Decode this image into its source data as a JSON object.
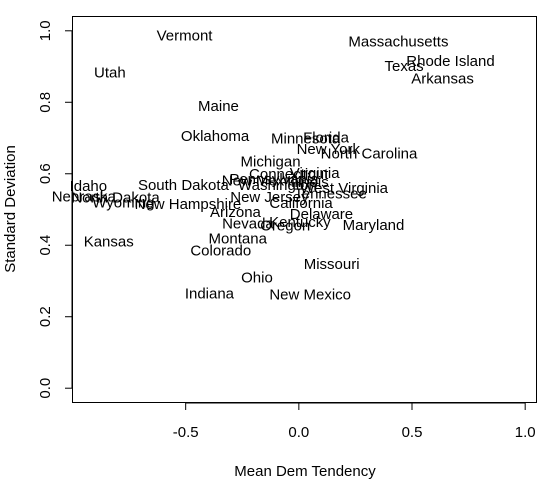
{
  "chart_data": {
    "type": "scatter",
    "title": "",
    "xlabel": "Mean Dem Tendency",
    "ylabel": "Standard Deviation",
    "xlim": [
      -1.0,
      1.05
    ],
    "ylim": [
      -0.04,
      1.04
    ],
    "xticks": [
      -0.5,
      0.0,
      0.5,
      1.0
    ],
    "xtick_labels": [
      "-0.5",
      "0.0",
      "0.5",
      "1.0"
    ],
    "yticks": [
      0.0,
      0.2,
      0.4,
      0.6,
      0.8,
      1.0
    ],
    "ytick_labels": [
      "0.0",
      "0.2",
      "0.4",
      "0.6",
      "0.8",
      "1.0"
    ],
    "grid": false,
    "points": [
      {
        "label": "Vermont",
        "x": -0.505,
        "y": 0.987
      },
      {
        "label": "Massachusetts",
        "x": 0.44,
        "y": 0.97
      },
      {
        "label": "Rhode Island",
        "x": 0.67,
        "y": 0.915
      },
      {
        "label": "Texas",
        "x": 0.465,
        "y": 0.902
      },
      {
        "label": "Utah",
        "x": -0.835,
        "y": 0.883
      },
      {
        "label": "Arkansas",
        "x": 0.635,
        "y": 0.867
      },
      {
        "label": "Maine",
        "x": -0.355,
        "y": 0.79
      },
      {
        "label": "Oklahoma",
        "x": -0.37,
        "y": 0.705
      },
      {
        "label": "Minnesota",
        "x": 0.03,
        "y": 0.699
      },
      {
        "label": "Florida",
        "x": 0.12,
        "y": 0.702
      },
      {
        "label": "New York",
        "x": 0.13,
        "y": 0.669
      },
      {
        "label": "North Carolina",
        "x": 0.31,
        "y": 0.656
      },
      {
        "label": "Michigan",
        "x": -0.125,
        "y": 0.634
      },
      {
        "label": "Connecticut",
        "x": -0.045,
        "y": 0.6
      },
      {
        "label": "Virginia",
        "x": 0.07,
        "y": 0.602
      },
      {
        "label": "Pennsylvania",
        "x": -0.11,
        "y": 0.585
      },
      {
        "label": "New Mexico",
        "x": -0.16,
        "y": 0.581
      },
      {
        "label": "Washington",
        "x": -0.095,
        "y": 0.568
      },
      {
        "label": "Illinois",
        "x": 0.04,
        "y": 0.577
      },
      {
        "label": "West Virginia",
        "x": 0.2,
        "y": 0.56
      },
      {
        "label": "Idaho",
        "x": -0.93,
        "y": 0.566
      },
      {
        "label": "South Dakota",
        "x": -0.51,
        "y": 0.569
      },
      {
        "label": "Tennessee",
        "x": 0.14,
        "y": 0.545
      },
      {
        "label": "North Dakota",
        "x": -0.81,
        "y": 0.533
      },
      {
        "label": "Nebraska",
        "x": -0.95,
        "y": 0.537
      },
      {
        "label": "New Jersey",
        "x": -0.13,
        "y": 0.535
      },
      {
        "label": "California",
        "x": 0.01,
        "y": 0.518
      },
      {
        "label": "Wyoming",
        "x": -0.775,
        "y": 0.52
      },
      {
        "label": "New Hampshire",
        "x": -0.49,
        "y": 0.516
      },
      {
        "label": "Arizona",
        "x": -0.28,
        "y": 0.493
      },
      {
        "label": "Delaware",
        "x": 0.1,
        "y": 0.488
      },
      {
        "label": "Nevada",
        "x": -0.225,
        "y": 0.461
      },
      {
        "label": "Kentucky",
        "x": 0.005,
        "y": 0.465
      },
      {
        "label": "Oregon",
        "x": -0.06,
        "y": 0.455
      },
      {
        "label": "Maryland",
        "x": 0.33,
        "y": 0.457
      },
      {
        "label": "Montana",
        "x": -0.27,
        "y": 0.419
      },
      {
        "label": "Kansas",
        "x": -0.84,
        "y": 0.41
      },
      {
        "label": "Colorado",
        "x": -0.345,
        "y": 0.385
      },
      {
        "label": "Missouri",
        "x": 0.145,
        "y": 0.348
      },
      {
        "label": "Ohio",
        "x": -0.185,
        "y": 0.31
      },
      {
        "label": "Indiana",
        "x": -0.395,
        "y": 0.265
      },
      {
        "label": "New Mexico",
        "x": 0.05,
        "y": 0.262
      }
    ]
  }
}
